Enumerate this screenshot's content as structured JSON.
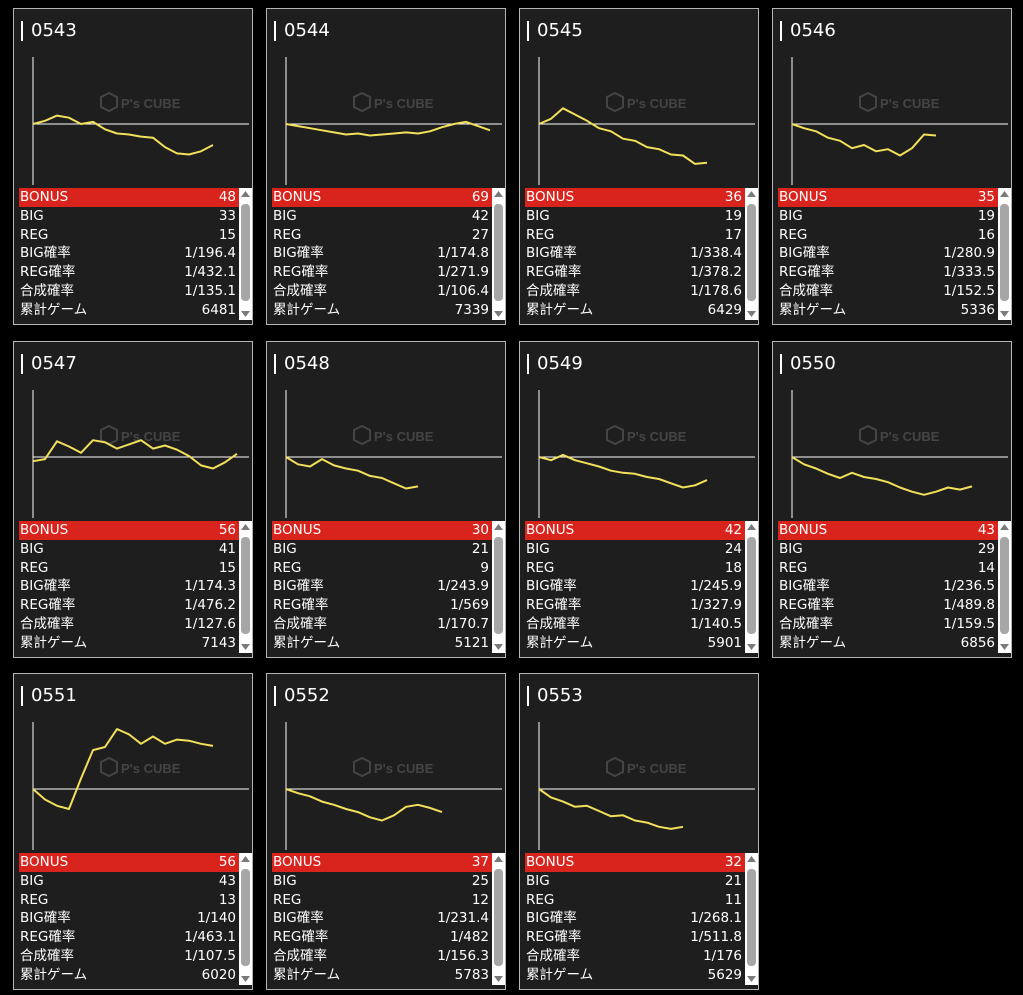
{
  "labels": {
    "bonus": "BONUS",
    "big": "BIG",
    "reg": "REG",
    "big_rate": "BIG確率",
    "reg_rate": "REG確率",
    "combined_rate": "合成確率",
    "total_games": "累計ゲーム"
  },
  "watermark": {
    "brand": "P's CUBE"
  },
  "colors": {
    "bonus_row": "#d9231d",
    "graph_line": "#f2e05a",
    "panel_bg": "#1e1e1e"
  },
  "machines": [
    {
      "id": "0543",
      "bonus": "48",
      "big": "33",
      "reg": "15",
      "big_rate": "1/196.4",
      "reg_rate": "1/432.1",
      "combined_rate": "1/135.1",
      "total_games": "6481"
    },
    {
      "id": "0544",
      "bonus": "69",
      "big": "42",
      "reg": "27",
      "big_rate": "1/174.8",
      "reg_rate": "1/271.9",
      "combined_rate": "1/106.4",
      "total_games": "7339"
    },
    {
      "id": "0545",
      "bonus": "36",
      "big": "19",
      "reg": "17",
      "big_rate": "1/338.4",
      "reg_rate": "1/378.2",
      "combined_rate": "1/178.6",
      "total_games": "6429"
    },
    {
      "id": "0546",
      "bonus": "35",
      "big": "19",
      "reg": "16",
      "big_rate": "1/280.9",
      "reg_rate": "1/333.5",
      "combined_rate": "1/152.5",
      "total_games": "5336"
    },
    {
      "id": "0547",
      "bonus": "56",
      "big": "41",
      "reg": "15",
      "big_rate": "1/174.3",
      "reg_rate": "1/476.2",
      "combined_rate": "1/127.6",
      "total_games": "7143"
    },
    {
      "id": "0548",
      "bonus": "30",
      "big": "21",
      "reg": "9",
      "big_rate": "1/243.9",
      "reg_rate": "1/569",
      "combined_rate": "1/170.7",
      "total_games": "5121"
    },
    {
      "id": "0549",
      "bonus": "42",
      "big": "24",
      "reg": "18",
      "big_rate": "1/245.9",
      "reg_rate": "1/327.9",
      "combined_rate": "1/140.5",
      "total_games": "5901"
    },
    {
      "id": "0550",
      "bonus": "43",
      "big": "29",
      "reg": "14",
      "big_rate": "1/236.5",
      "reg_rate": "1/489.8",
      "combined_rate": "1/159.5",
      "total_games": "6856"
    },
    {
      "id": "0551",
      "bonus": "56",
      "big": "43",
      "reg": "13",
      "big_rate": "1/140",
      "reg_rate": "1/463.1",
      "combined_rate": "1/107.5",
      "total_games": "6020"
    },
    {
      "id": "0552",
      "bonus": "37",
      "big": "25",
      "reg": "12",
      "big_rate": "1/231.4",
      "reg_rate": "1/482",
      "combined_rate": "1/156.3",
      "total_games": "5783"
    },
    {
      "id": "0553",
      "bonus": "32",
      "big": "21",
      "reg": "11",
      "big_rate": "1/268.1",
      "reg_rate": "1/511.8",
      "combined_rate": "1/176",
      "total_games": "5629"
    }
  ],
  "chart_data": [
    {
      "type": "line",
      "machine": "0543",
      "x": [
        0,
        12,
        24,
        36,
        48,
        60,
        72,
        84,
        96,
        108,
        120,
        132,
        144,
        156,
        168,
        180
      ],
      "values": [
        0,
        300,
        800,
        600,
        0,
        200,
        -500,
        -900,
        -1000,
        -1200,
        -1300,
        -2200,
        -2800,
        -2900,
        -2600,
        -2000
      ]
    },
    {
      "type": "line",
      "machine": "0544",
      "x": [
        0,
        12,
        24,
        36,
        48,
        60,
        72,
        84,
        96,
        108,
        120,
        132,
        144,
        156,
        168,
        180,
        192,
        204
      ],
      "values": [
        0,
        -200,
        -400,
        -600,
        -800,
        -1000,
        -900,
        -1100,
        -1000,
        -900,
        -800,
        -900,
        -700,
        -300,
        0,
        200,
        -200,
        -600
      ]
    },
    {
      "type": "line",
      "machine": "0545",
      "x": [
        0,
        12,
        24,
        36,
        48,
        60,
        72,
        84,
        96,
        108,
        120,
        132,
        144,
        156,
        168
      ],
      "values": [
        0,
        500,
        1500,
        900,
        300,
        -400,
        -700,
        -1400,
        -1600,
        -2200,
        -2400,
        -2900,
        -3000,
        -3800,
        -3700
      ]
    },
    {
      "type": "line",
      "machine": "0546",
      "x": [
        0,
        12,
        24,
        36,
        48,
        60,
        72,
        84,
        96,
        108,
        120,
        132,
        144
      ],
      "values": [
        0,
        -400,
        -700,
        -1300,
        -1600,
        -2300,
        -2000,
        -2600,
        -2400,
        -3000,
        -2300,
        -1000,
        -1100
      ]
    },
    {
      "type": "line",
      "machine": "0547",
      "x": [
        0,
        12,
        24,
        36,
        48,
        60,
        72,
        84,
        96,
        108,
        120,
        132,
        144,
        156,
        168,
        180,
        192,
        204
      ],
      "values": [
        -400,
        -200,
        1500,
        1000,
        400,
        1600,
        1400,
        800,
        1200,
        1600,
        800,
        1100,
        700,
        100,
        -800,
        -1100,
        -500,
        300
      ]
    },
    {
      "type": "line",
      "machine": "0548",
      "x": [
        0,
        12,
        24,
        36,
        48,
        60,
        72,
        84,
        96,
        108,
        120,
        132
      ],
      "values": [
        0,
        -700,
        -900,
        -200,
        -800,
        -1100,
        -1300,
        -1800,
        -2000,
        -2500,
        -3000,
        -2800
      ]
    },
    {
      "type": "line",
      "machine": "0549",
      "x": [
        0,
        12,
        24,
        36,
        48,
        60,
        72,
        84,
        96,
        108,
        120,
        132,
        144,
        156,
        168
      ],
      "values": [
        0,
        -300,
        200,
        -300,
        -600,
        -900,
        -1300,
        -1500,
        -1600,
        -1900,
        -2100,
        -2500,
        -2900,
        -2700,
        -2200
      ]
    },
    {
      "type": "line",
      "machine": "0550",
      "x": [
        0,
        12,
        24,
        36,
        48,
        60,
        72,
        84,
        96,
        108,
        120,
        132,
        144,
        156,
        168,
        180
      ],
      "values": [
        0,
        -700,
        -1100,
        -1600,
        -2000,
        -1500,
        -1900,
        -2100,
        -2400,
        -2900,
        -3300,
        -3600,
        -3300,
        -2900,
        -3100,
        -2800
      ]
    },
    {
      "type": "line",
      "machine": "0551",
      "x": [
        0,
        12,
        24,
        36,
        48,
        60,
        72,
        84,
        96,
        108,
        120,
        132,
        144,
        156,
        168,
        180
      ],
      "values": [
        0,
        -1000,
        -1600,
        -1900,
        1000,
        3700,
        4000,
        5700,
        5200,
        4300,
        5000,
        4300,
        4700,
        4600,
        4300,
        4100
      ]
    },
    {
      "type": "line",
      "machine": "0552",
      "x": [
        0,
        12,
        24,
        36,
        48,
        60,
        72,
        84,
        96,
        108,
        120,
        132,
        144,
        156
      ],
      "values": [
        0,
        -400,
        -700,
        -1200,
        -1500,
        -1900,
        -2200,
        -2700,
        -3000,
        -2500,
        -1700,
        -1500,
        -1800,
        -2200
      ]
    },
    {
      "type": "line",
      "machine": "0553",
      "x": [
        0,
        12,
        24,
        36,
        48,
        60,
        72,
        84,
        96,
        108,
        120,
        132,
        144
      ],
      "values": [
        0,
        -800,
        -1200,
        -1700,
        -1600,
        -2100,
        -2600,
        -2500,
        -3000,
        -3200,
        -3600,
        -3800,
        -3600
      ]
    }
  ]
}
